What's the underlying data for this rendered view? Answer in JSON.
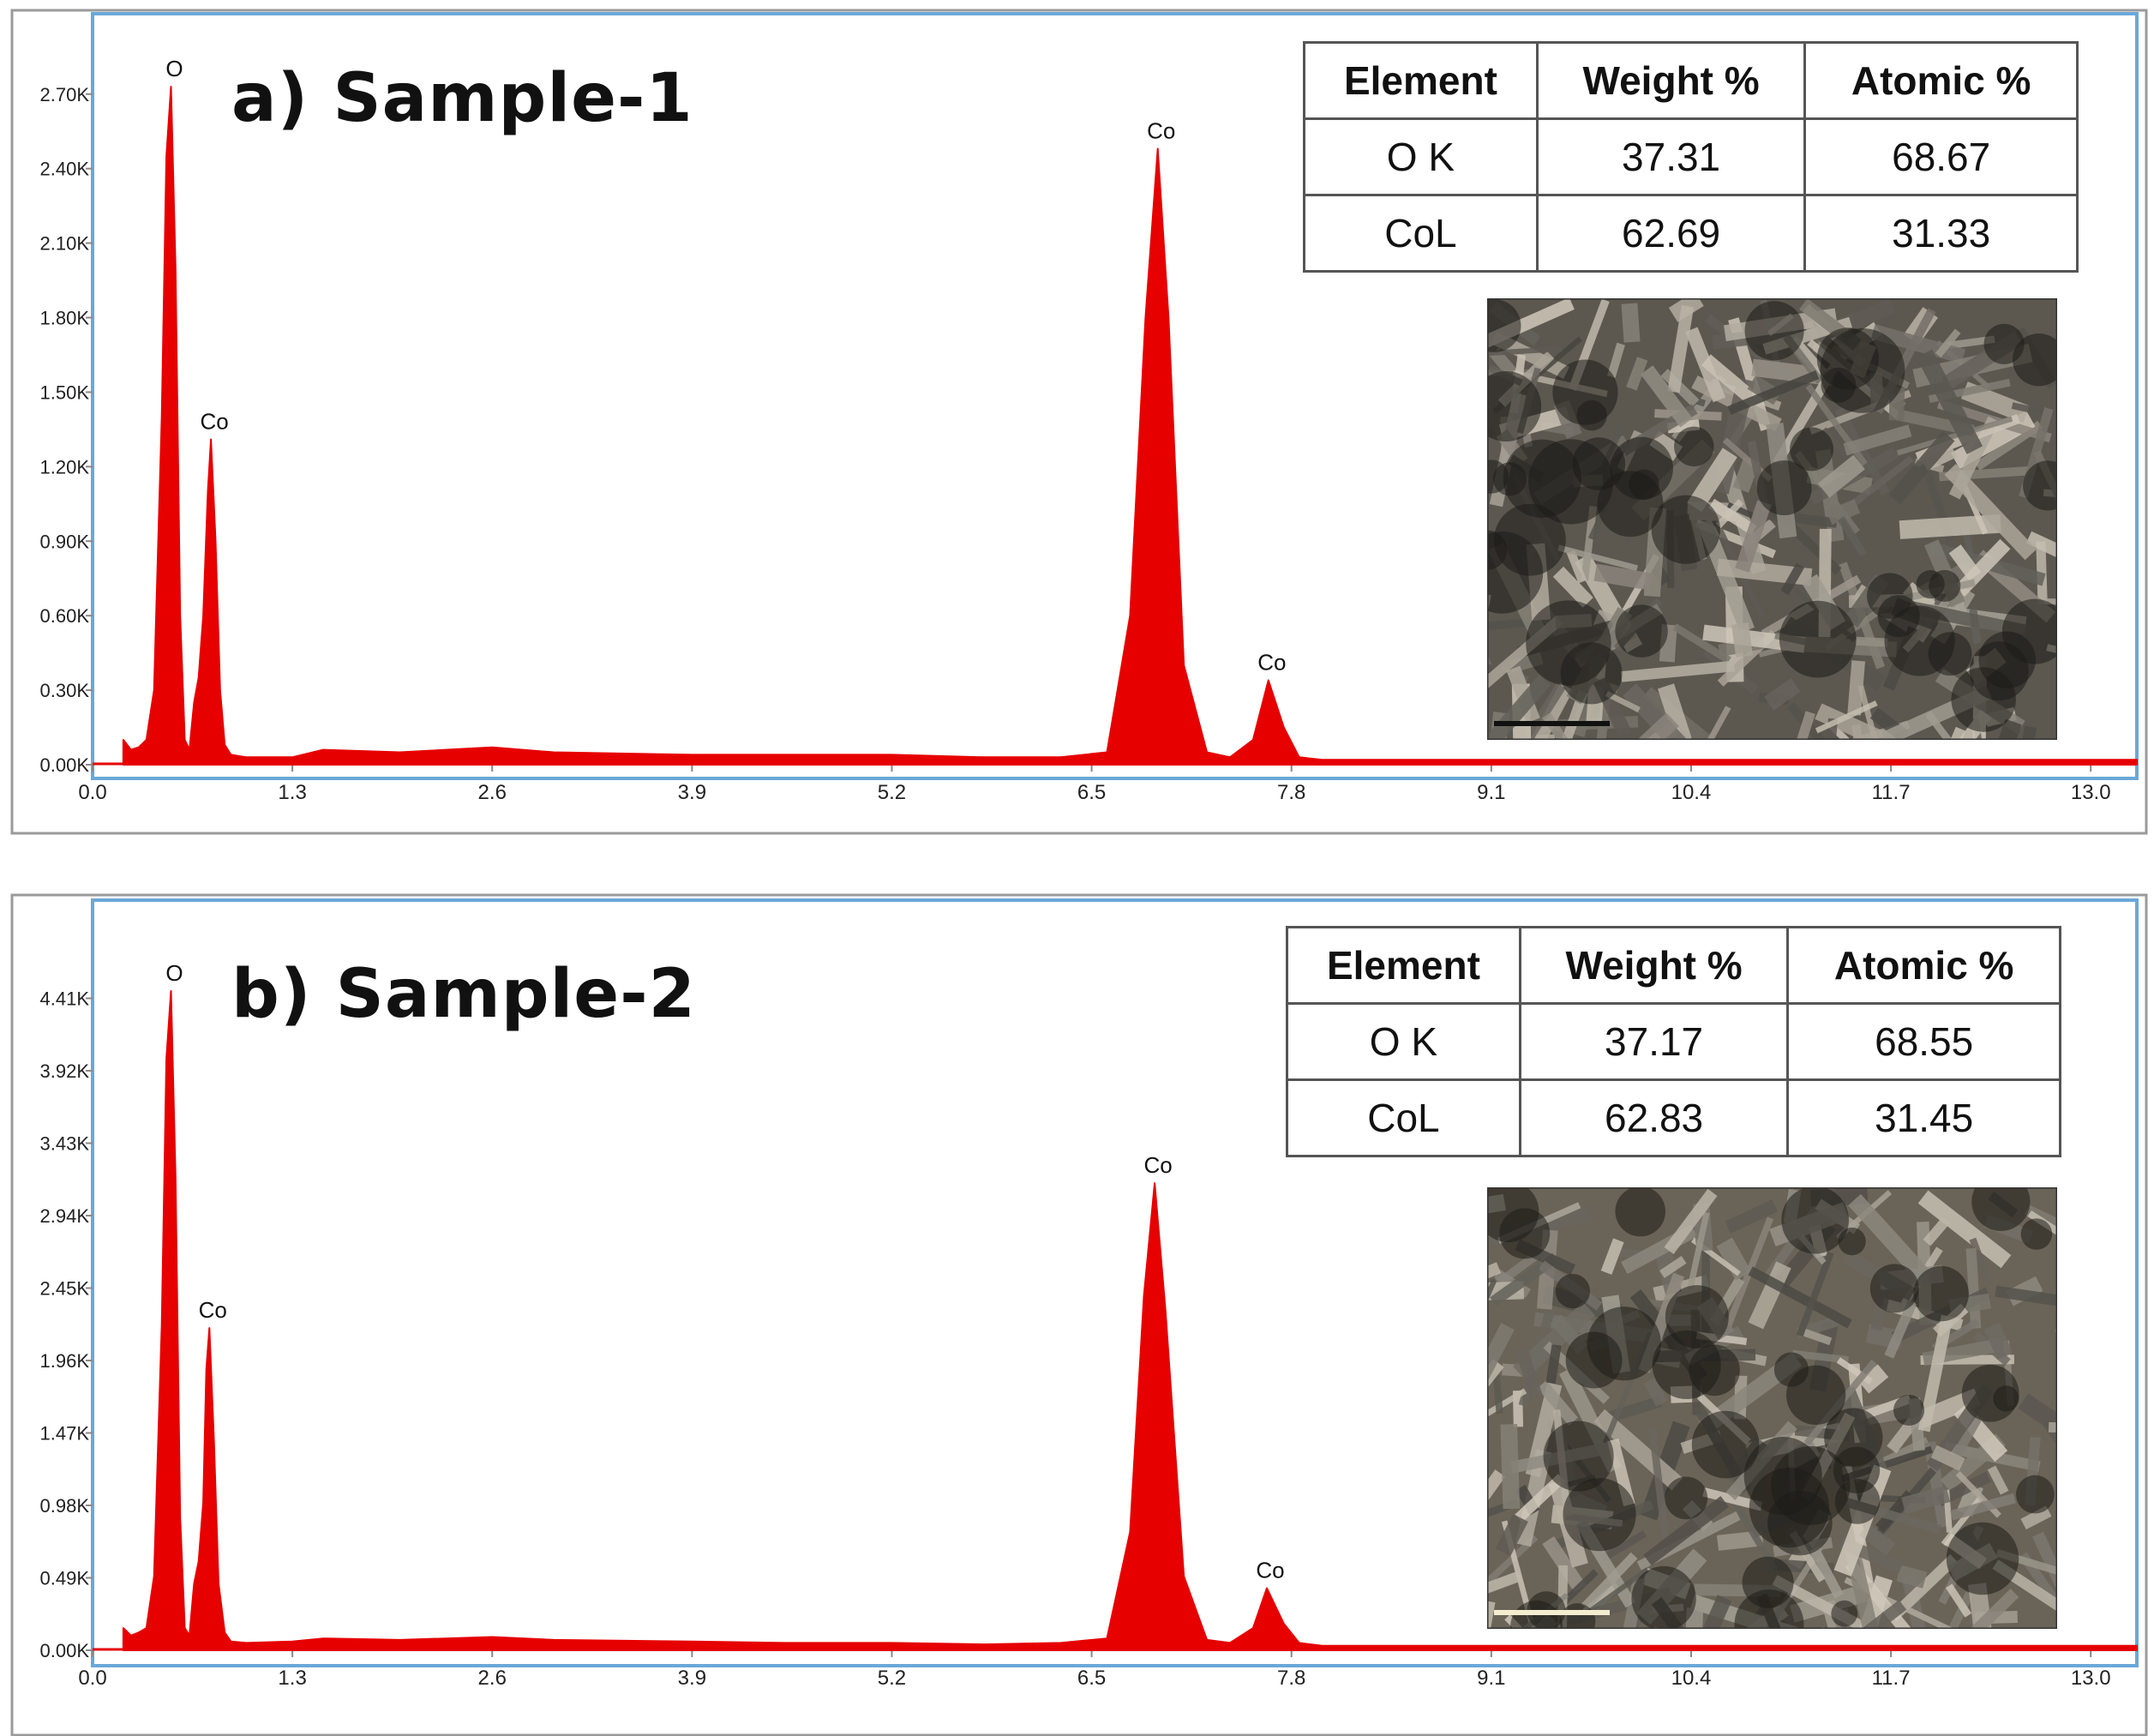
{
  "panels": [
    {
      "title": "a) Sample-1",
      "table": {
        "headers": [
          "Element",
          "Weight %",
          "Atomic %"
        ],
        "rows": [
          [
            "O K",
            "37.31",
            "68.67"
          ],
          [
            "CoL",
            "62.69",
            "31.33"
          ]
        ]
      }
    },
    {
      "title": "b) Sample-2",
      "table": {
        "headers": [
          "Element",
          "Weight %",
          "Atomic %"
        ],
        "rows": [
          [
            "O K",
            "37.17",
            "68.55"
          ],
          [
            "CoL",
            "62.83",
            "31.45"
          ]
        ]
      }
    }
  ],
  "chart_data": [
    {
      "type": "area",
      "title": "a) Sample-1",
      "xlim": [
        0,
        13.3
      ],
      "ylim": [
        0,
        2.82
      ],
      "x_ticks": [
        0.0,
        1.3,
        2.6,
        3.9,
        5.2,
        6.5,
        7.8,
        9.1,
        10.4,
        11.7,
        13.0
      ],
      "x_tick_labels": [
        "0.0",
        "1.3",
        "2.6",
        "3.9",
        "5.2",
        "6.5",
        "7.8",
        "9.1",
        "10.4",
        "11.7",
        "13.0"
      ],
      "y_ticks": [
        0,
        0.3,
        0.6,
        0.9,
        1.2,
        1.5,
        1.8,
        2.1,
        2.4,
        2.7
      ],
      "y_tick_labels": [
        "0.00K",
        "0.30K",
        "0.60K",
        "0.90K",
        "1.20K",
        "1.50K",
        "1.80K",
        "2.10K",
        "2.40K",
        "2.70K"
      ],
      "peaks": [
        {
          "x": 0.51,
          "y": 2.73,
          "label": "O"
        },
        {
          "x": 0.77,
          "y": 1.31,
          "label": "Co"
        },
        {
          "x": 6.93,
          "y": 2.48,
          "label": "Co"
        },
        {
          "x": 7.65,
          "y": 0.34,
          "label": "Co"
        }
      ],
      "series": [
        {
          "x": [
            0.2,
            0.25,
            0.3,
            0.35,
            0.4,
            0.45,
            0.48,
            0.51,
            0.54,
            0.57,
            0.6,
            0.63,
            0.66,
            0.69,
            0.72,
            0.75,
            0.77,
            0.8,
            0.83,
            0.86,
            0.9,
            1.0,
            1.3,
            1.5,
            2.0,
            2.6,
            3.0,
            3.9,
            4.5,
            5.2,
            5.8,
            6.3,
            6.6,
            6.75,
            6.85,
            6.93,
            7.0,
            7.1,
            7.25,
            7.4,
            7.55,
            7.65,
            7.75,
            7.85,
            8.0,
            9.1,
            10.4,
            11.7,
            13.0,
            13.3
          ],
          "y": [
            0.1,
            0.06,
            0.07,
            0.1,
            0.3,
            1.4,
            2.45,
            2.73,
            2.0,
            0.6,
            0.1,
            0.06,
            0.25,
            0.35,
            0.6,
            1.1,
            1.31,
            0.9,
            0.3,
            0.08,
            0.04,
            0.03,
            0.03,
            0.06,
            0.05,
            0.07,
            0.05,
            0.04,
            0.04,
            0.04,
            0.03,
            0.03,
            0.05,
            0.6,
            1.8,
            2.48,
            1.8,
            0.4,
            0.05,
            0.03,
            0.1,
            0.34,
            0.15,
            0.03,
            0.02,
            0.02,
            0.02,
            0.02,
            0.02,
            0.02
          ]
        }
      ]
    },
    {
      "type": "area",
      "title": "b) Sample-2",
      "xlim": [
        0,
        13.3
      ],
      "ylim": [
        0,
        4.61
      ],
      "x_ticks": [
        0.0,
        1.3,
        2.6,
        3.9,
        5.2,
        6.5,
        7.8,
        9.1,
        10.4,
        11.7,
        13.0
      ],
      "x_tick_labels": [
        "0.0",
        "1.3",
        "2.6",
        "3.9",
        "5.2",
        "6.5",
        "7.8",
        "9.1",
        "10.4",
        "11.7",
        "13.0"
      ],
      "y_ticks": [
        0,
        0.49,
        0.98,
        1.47,
        1.96,
        2.45,
        2.94,
        3.43,
        3.92,
        4.41
      ],
      "y_tick_labels": [
        "0.00K",
        "0.49K",
        "0.98K",
        "1.47K",
        "1.96K",
        "2.45K",
        "2.94K",
        "3.43K",
        "3.92K",
        "4.41K"
      ],
      "peaks": [
        {
          "x": 0.51,
          "y": 4.46,
          "label": "O"
        },
        {
          "x": 0.76,
          "y": 2.18,
          "label": "Co"
        },
        {
          "x": 6.91,
          "y": 3.16,
          "label": "Co"
        },
        {
          "x": 7.64,
          "y": 0.42,
          "label": "Co"
        }
      ],
      "series": [
        {
          "x": [
            0.2,
            0.25,
            0.3,
            0.35,
            0.4,
            0.45,
            0.48,
            0.51,
            0.54,
            0.57,
            0.6,
            0.63,
            0.66,
            0.69,
            0.72,
            0.74,
            0.76,
            0.79,
            0.82,
            0.86,
            0.9,
            1.0,
            1.3,
            1.5,
            2.0,
            2.6,
            3.0,
            3.9,
            4.5,
            5.2,
            5.8,
            6.3,
            6.6,
            6.75,
            6.84,
            6.91,
            6.98,
            7.1,
            7.25,
            7.4,
            7.55,
            7.64,
            7.75,
            7.85,
            8.0,
            9.1,
            10.4,
            11.7,
            13.0,
            13.3
          ],
          "y": [
            0.15,
            0.1,
            0.12,
            0.15,
            0.5,
            2.2,
            4.0,
            4.46,
            3.2,
            0.9,
            0.15,
            0.1,
            0.45,
            0.6,
            1.0,
            1.9,
            2.18,
            1.4,
            0.45,
            0.12,
            0.06,
            0.05,
            0.06,
            0.08,
            0.07,
            0.09,
            0.07,
            0.06,
            0.05,
            0.05,
            0.04,
            0.05,
            0.08,
            0.8,
            2.4,
            3.16,
            2.3,
            0.5,
            0.07,
            0.05,
            0.15,
            0.42,
            0.18,
            0.05,
            0.03,
            0.03,
            0.03,
            0.03,
            0.03,
            0.03
          ]
        }
      ]
    }
  ],
  "colors": {
    "spectrum": "#e60000",
    "frame": "#6aa8d8",
    "outer_frame": "#9a9a9a"
  }
}
